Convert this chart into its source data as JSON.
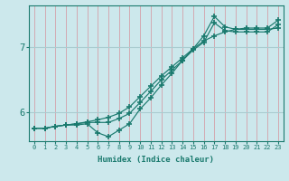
{
  "xlabel": "Humidex (Indice chaleur)",
  "bg_color": "#cce8ec",
  "line_color": "#1a7a6e",
  "vgrid_color": "#d4a0a8",
  "hgrid_color": "#aaccd0",
  "x_ticks": [
    0,
    1,
    2,
    3,
    4,
    5,
    6,
    7,
    8,
    9,
    10,
    11,
    12,
    13,
    14,
    15,
    16,
    17,
    18,
    19,
    20,
    21,
    22,
    23
  ],
  "y_ticks": [
    6,
    7
  ],
  "xlim": [
    -0.5,
    23.5
  ],
  "ylim": [
    5.55,
    7.65
  ],
  "series": [
    [
      5.75,
      5.75,
      5.78,
      5.8,
      5.8,
      5.82,
      5.68,
      5.62,
      5.72,
      5.82,
      6.05,
      6.22,
      6.42,
      6.6,
      6.8,
      6.98,
      7.18,
      7.48,
      7.32,
      7.28,
      7.28,
      7.28,
      7.28,
      7.3
    ],
    [
      5.75,
      5.75,
      5.78,
      5.8,
      5.82,
      5.84,
      5.84,
      5.84,
      5.9,
      5.98,
      6.15,
      6.32,
      6.5,
      6.65,
      6.8,
      6.96,
      7.08,
      7.38,
      7.26,
      7.24,
      7.24,
      7.24,
      7.24,
      7.35
    ],
    [
      5.75,
      5.75,
      5.78,
      5.8,
      5.82,
      5.85,
      5.88,
      5.92,
      5.98,
      6.08,
      6.24,
      6.4,
      6.56,
      6.7,
      6.84,
      6.98,
      7.1,
      7.18,
      7.24,
      7.28,
      7.3,
      7.3,
      7.3,
      7.42
    ]
  ]
}
